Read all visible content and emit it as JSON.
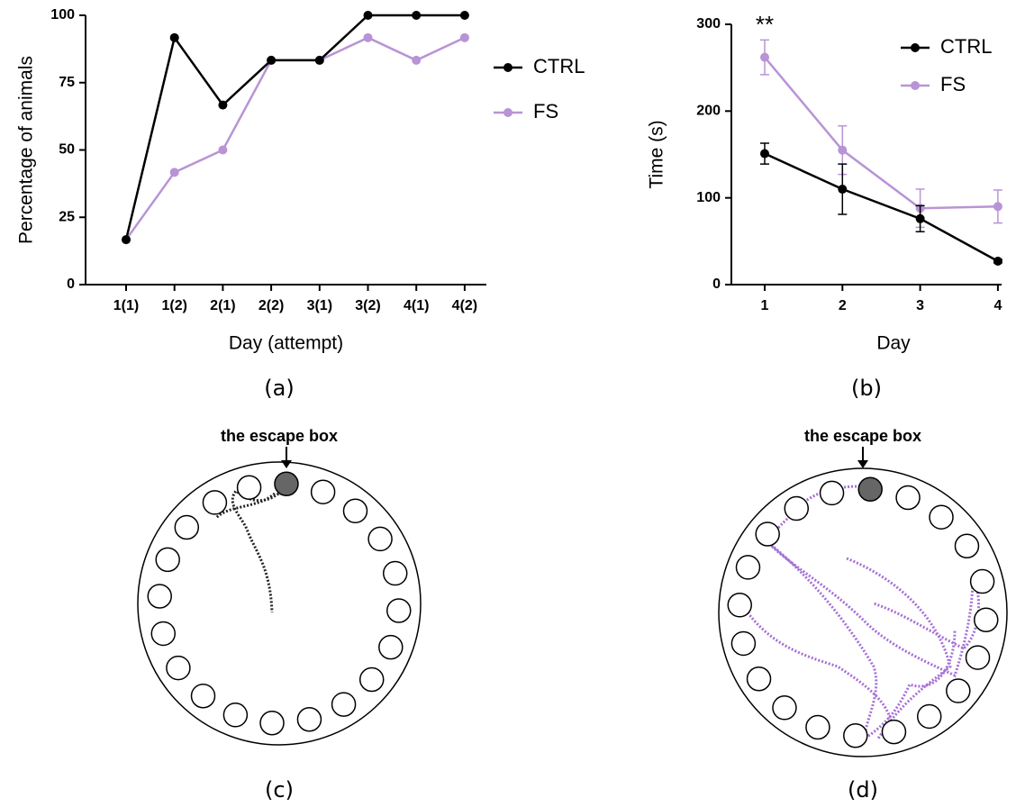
{
  "chart_data": [
    {
      "type": "line",
      "label": "(a)",
      "ylabel": "Percentage of animals",
      "xlabel": "Day (attempt)",
      "categories": [
        "1(1)",
        "1(2)",
        "2(1)",
        "2(2)",
        "3(1)",
        "3(2)",
        "4(1)",
        "4(2)"
      ],
      "series": [
        {
          "name": "CTRL",
          "color": "#000000",
          "values": [
            16.7,
            91.7,
            66.7,
            83.3,
            83.3,
            100,
            100,
            100
          ]
        },
        {
          "name": "FS",
          "color": "#b894d6",
          "values": [
            16.7,
            41.7,
            50,
            83.3,
            83.3,
            91.7,
            83.3,
            91.7
          ]
        }
      ],
      "ylim": [
        0,
        100
      ],
      "yticks": [
        0,
        25,
        50,
        75,
        100
      ],
      "legend": "upper right"
    },
    {
      "type": "line",
      "label": "(b)",
      "ylabel": "Time (s)",
      "xlabel": "Day",
      "annotation": "**",
      "categories": [
        "1",
        "2",
        "3",
        "4"
      ],
      "series": [
        {
          "name": "CTRL",
          "color": "#000000",
          "values": [
            151,
            110,
            76,
            27
          ],
          "errors": [
            12,
            29,
            15,
            2
          ]
        },
        {
          "name": "FS",
          "color": "#b894d6",
          "values": [
            262,
            155,
            88,
            90
          ],
          "errors": [
            20,
            28,
            22,
            19
          ]
        }
      ],
      "ylim": [
        0,
        300
      ],
      "yticks": [
        0,
        100,
        200,
        300
      ],
      "legend": "upper right"
    }
  ],
  "diagrams": [
    {
      "label": "the escape box",
      "caption": "(c)"
    },
    {
      "label": "the escape box",
      "caption": "(d)"
    }
  ]
}
